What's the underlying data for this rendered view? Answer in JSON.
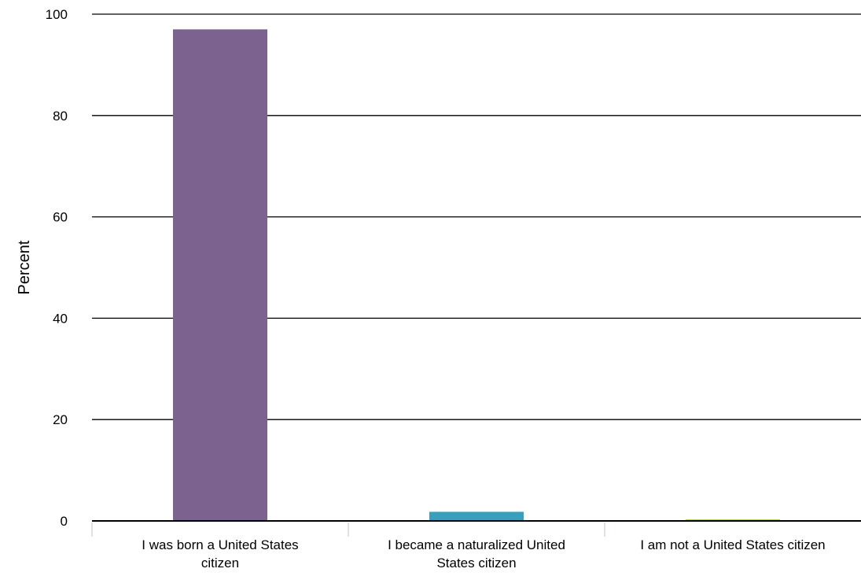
{
  "chart_data": {
    "type": "bar",
    "title": "",
    "xlabel": "",
    "ylabel": "Percent",
    "ylim": [
      0,
      100
    ],
    "yticks": [
      0,
      20,
      40,
      60,
      80,
      100
    ],
    "grid": true,
    "categories": [
      [
        "I was born a United States",
        "citizen"
      ],
      [
        "I became a naturalized United",
        "States citizen"
      ],
      [
        "I am not a United States citizen"
      ]
    ],
    "values": [
      97,
      1.8,
      0.3
    ],
    "colors": [
      "#7b628f",
      "#3a9fbd",
      "#a6c94a"
    ]
  }
}
